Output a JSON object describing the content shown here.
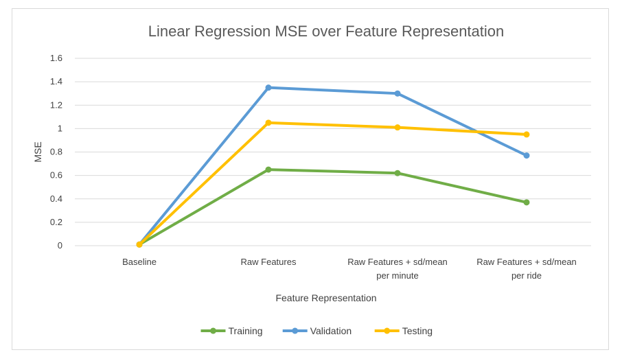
{
  "chart_data": {
    "type": "line",
    "title": "Linear Regression MSE over Feature Representation",
    "xlabel": "Feature Representation",
    "ylabel": "MSE",
    "categories": [
      [
        "Baseline"
      ],
      [
        "Raw Features"
      ],
      [
        "Raw Features + sd/mean",
        "per minute"
      ],
      [
        "Raw Features + sd/mean",
        "per ride"
      ]
    ],
    "ylim": [
      0,
      1.6
    ],
    "yticks": [
      "0",
      "0.2",
      "0.4",
      "0.6",
      "0.8",
      "1",
      "1.2",
      "1.4",
      "1.6"
    ],
    "grid": true,
    "legend_position": "bottom",
    "series": [
      {
        "name": "Training",
        "color": "#70ad47",
        "values": [
          0.01,
          0.65,
          0.62,
          0.37
        ]
      },
      {
        "name": "Validation",
        "color": "#5b9bd5",
        "values": [
          0.01,
          1.35,
          1.3,
          0.77
        ]
      },
      {
        "name": "Testing",
        "color": "#ffc000",
        "values": [
          0.01,
          1.05,
          1.01,
          0.95
        ]
      }
    ]
  }
}
